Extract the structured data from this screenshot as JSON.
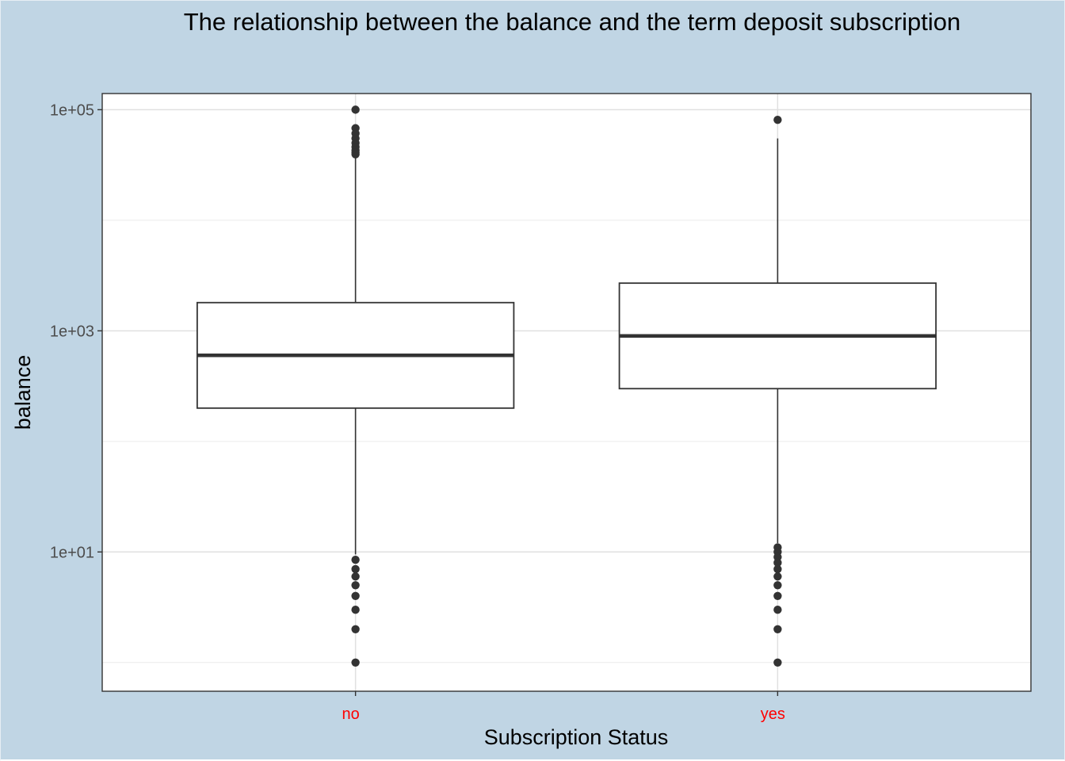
{
  "chart_data": {
    "type": "boxplot",
    "title": "The relationship between the balance and the term deposit subscription",
    "xlabel": "Subscription Status",
    "ylabel": "balance",
    "y_scale": "log10",
    "ylim": [
      0.55,
      140000
    ],
    "y_ticks": [
      {
        "value": 10,
        "label": "1e+01"
      },
      {
        "value": 1000,
        "label": "1e+03"
      },
      {
        "value": 100000,
        "label": "1e+05"
      }
    ],
    "y_minor_gridlines": [
      1,
      100,
      10000
    ],
    "grid": true,
    "categories": [
      "no",
      "yes"
    ],
    "category_label_color": "#ff0000",
    "boxes": [
      {
        "category": "no",
        "q1": 200,
        "median": 600,
        "q3": 1800,
        "whisker_low": 9.5,
        "whisker_high": 38000,
        "outliers": [
          100000,
          68000,
          61000,
          55000,
          50000,
          46000,
          43000,
          41000,
          39500,
          8.5,
          7,
          6,
          5,
          4,
          3,
          2,
          1
        ]
      },
      {
        "category": "yes",
        "q1": 300,
        "median": 900,
        "q3": 2700,
        "whisker_low": 12,
        "whisker_high": 55000,
        "outliers": [
          81000,
          11,
          10,
          9,
          8,
          7,
          6,
          5,
          4,
          3,
          2,
          1
        ]
      }
    ]
  }
}
